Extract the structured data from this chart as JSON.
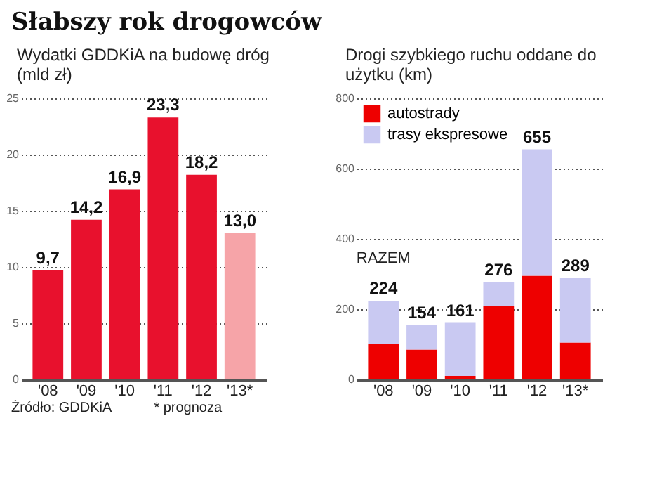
{
  "chart_data": [
    {
      "type": "bar",
      "title": "Słabszy rok drogowców",
      "subtitle": "Wydatki GDDKiA na budowę dróg (mld zł)",
      "categories": [
        "'08",
        "'09",
        "'10",
        "'11",
        "'12",
        "'13*"
      ],
      "values": [
        9.7,
        14.2,
        16.9,
        23.3,
        18.2,
        13.0
      ],
      "value_labels": [
        "9,7",
        "14,2",
        "16,9",
        "23,3",
        "18,2",
        "13,0"
      ],
      "colors": [
        "#e8112d",
        "#e8112d",
        "#e8112d",
        "#e8112d",
        "#e8112d",
        "#f6a4a8"
      ],
      "ylim": [
        0,
        25
      ],
      "yticks": [
        0,
        5,
        10,
        15,
        20,
        25
      ],
      "grid": "y",
      "annotations": [
        "Źródło: GDDKiA",
        "* prognoza"
      ]
    },
    {
      "type": "bar",
      "title": "Drogi szybkiego ruchu oddane do użytku (km)",
      "categories": [
        "'08",
        "'09",
        "'10",
        "'11",
        "'12",
        "'13*"
      ],
      "stacked": true,
      "series": [
        {
          "name": "autostrady",
          "color": "#ee0000",
          "values": [
            100,
            85,
            10,
            210,
            295,
            105
          ]
        },
        {
          "name": "trasy ekspresowe",
          "color": "#c9c9f2",
          "values": [
            124,
            69,
            151,
            66,
            360,
            184
          ]
        }
      ],
      "totals": [
        "224",
        "154",
        "161",
        "276",
        "655",
        "289"
      ],
      "ylim": [
        0,
        800
      ],
      "yticks": [
        0,
        200,
        400,
        600,
        800
      ],
      "grid": "y",
      "legend": "top left",
      "annotations": [
        {
          "text": "RAZEM",
          "x": "'08",
          "y": 224
        }
      ]
    }
  ]
}
